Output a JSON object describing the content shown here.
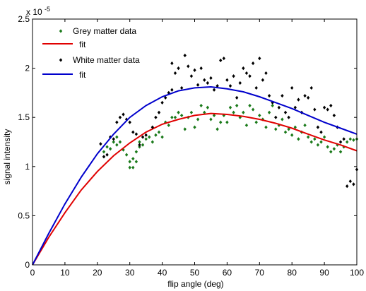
{
  "chart_data": {
    "type": "scatter",
    "xlabel": "flip angle (deg)",
    "ylabel": "signal intensity",
    "exponent_label": "x 10",
    "exponent_power": "-5",
    "xlim": [
      0,
      100
    ],
    "ylim": [
      0,
      2.5
    ],
    "x_ticks": [
      0,
      10,
      20,
      30,
      40,
      50,
      60,
      70,
      80,
      90,
      100
    ],
    "y_ticks": [
      0,
      0.5,
      1,
      1.5,
      2,
      2.5
    ],
    "x_tick_labels": [
      "0",
      "10",
      "20",
      "30",
      "40",
      "50",
      "60",
      "70",
      "80",
      "90",
      "100"
    ],
    "y_tick_labels": [
      "0",
      "0.5",
      "1",
      "1.5",
      "2",
      "2.5"
    ],
    "grid": false,
    "legend_position": "top-left",
    "series": [
      {
        "name": "Grey matter data",
        "kind": "points",
        "color": "#1a7a1a",
        "points": [
          [
            22,
            1.15
          ],
          [
            23,
            1.2
          ],
          [
            24,
            1.18
          ],
          [
            25,
            1.25
          ],
          [
            26,
            1.22
          ],
          [
            26,
            1.3
          ],
          [
            27,
            1.25
          ],
          [
            28,
            1.17
          ],
          [
            29,
            1.12
          ],
          [
            30,
            1.05
          ],
          [
            30,
            0.99
          ],
          [
            31,
            0.99
          ],
          [
            31,
            1.08
          ],
          [
            32,
            1.05
          ],
          [
            32,
            1.15
          ],
          [
            33,
            1.2
          ],
          [
            33,
            1.25
          ],
          [
            34,
            1.22
          ],
          [
            35,
            1.28
          ],
          [
            36,
            1.3
          ],
          [
            37,
            1.25
          ],
          [
            38,
            1.32
          ],
          [
            39,
            1.35
          ],
          [
            40,
            1.3
          ],
          [
            41,
            1.45
          ],
          [
            42,
            1.42
          ],
          [
            43,
            1.5
          ],
          [
            44,
            1.5
          ],
          [
            45,
            1.55
          ],
          [
            46,
            1.52
          ],
          [
            47,
            1.38
          ],
          [
            48,
            1.5
          ],
          [
            49,
            1.55
          ],
          [
            50,
            1.4
          ],
          [
            51,
            1.48
          ],
          [
            52,
            1.62
          ],
          [
            53,
            1.55
          ],
          [
            54,
            1.6
          ],
          [
            55,
            1.48
          ],
          [
            56,
            1.52
          ],
          [
            57,
            1.38
          ],
          [
            58,
            1.45
          ],
          [
            59,
            1.52
          ],
          [
            60,
            1.45
          ],
          [
            61,
            1.6
          ],
          [
            62,
            1.55
          ],
          [
            63,
            1.62
          ],
          [
            64,
            1.5
          ],
          [
            65,
            1.55
          ],
          [
            66,
            1.42
          ],
          [
            67,
            1.62
          ],
          [
            68,
            1.58
          ],
          [
            69,
            1.45
          ],
          [
            70,
            1.52
          ],
          [
            71,
            1.48
          ],
          [
            72,
            1.4
          ],
          [
            73,
            1.55
          ],
          [
            74,
            1.62
          ],
          [
            75,
            1.38
          ],
          [
            76,
            1.42
          ],
          [
            77,
            1.48
          ],
          [
            78,
            1.35
          ],
          [
            79,
            1.38
          ],
          [
            80,
            1.32
          ],
          [
            81,
            1.4
          ],
          [
            82,
            1.28
          ],
          [
            83,
            1.35
          ],
          [
            84,
            1.42
          ],
          [
            85,
            1.3
          ],
          [
            86,
            1.25
          ],
          [
            87,
            1.28
          ],
          [
            88,
            1.22
          ],
          [
            89,
            1.25
          ],
          [
            90,
            1.3
          ],
          [
            91,
            1.2
          ],
          [
            92,
            1.15
          ],
          [
            93,
            1.18
          ],
          [
            94,
            1.22
          ],
          [
            95,
            1.15
          ],
          [
            96,
            1.2
          ],
          [
            97,
            1.25
          ],
          [
            98,
            1.28
          ],
          [
            99,
            1.27
          ],
          [
            100,
            1.28
          ]
        ]
      },
      {
        "name": "fit",
        "kind": "line",
        "color": "#e00000",
        "points": [
          [
            0,
            0
          ],
          [
            5,
            0.28
          ],
          [
            10,
            0.53
          ],
          [
            15,
            0.76
          ],
          [
            20,
            0.95
          ],
          [
            25,
            1.11
          ],
          [
            30,
            1.24
          ],
          [
            35,
            1.35
          ],
          [
            40,
            1.43
          ],
          [
            45,
            1.48
          ],
          [
            50,
            1.52
          ],
          [
            55,
            1.54
          ],
          [
            60,
            1.53
          ],
          [
            65,
            1.51
          ],
          [
            70,
            1.48
          ],
          [
            75,
            1.44
          ],
          [
            80,
            1.39
          ],
          [
            85,
            1.33
          ],
          [
            90,
            1.27
          ],
          [
            95,
            1.22
          ],
          [
            100,
            1.16
          ]
        ]
      },
      {
        "name": "White matter data",
        "kind": "points",
        "color": "#000000",
        "points": [
          [
            21,
            1.23
          ],
          [
            22,
            1.1
          ],
          [
            23,
            1.12
          ],
          [
            24,
            1.3
          ],
          [
            25,
            1.28
          ],
          [
            26,
            1.45
          ],
          [
            27,
            1.5
          ],
          [
            28,
            1.53
          ],
          [
            29,
            1.48
          ],
          [
            30,
            1.45
          ],
          [
            31,
            1.35
          ],
          [
            32,
            1.33
          ],
          [
            33,
            1.22
          ],
          [
            34,
            1.3
          ],
          [
            35,
            1.32
          ],
          [
            37,
            1.4
          ],
          [
            38,
            1.5
          ],
          [
            39,
            1.55
          ],
          [
            40,
            1.65
          ],
          [
            41,
            1.7
          ],
          [
            42,
            1.75
          ],
          [
            43,
            1.78
          ],
          [
            43,
            2.05
          ],
          [
            44,
            1.95
          ],
          [
            45,
            2.0
          ],
          [
            46,
            1.8
          ],
          [
            47,
            2.13
          ],
          [
            48,
            2.02
          ],
          [
            49,
            1.92
          ],
          [
            50,
            1.98
          ],
          [
            51,
            1.83
          ],
          [
            52,
            2.0
          ],
          [
            53,
            1.88
          ],
          [
            54,
            1.85
          ],
          [
            55,
            1.9
          ],
          [
            56,
            1.78
          ],
          [
            57,
            1.82
          ],
          [
            58,
            2.08
          ],
          [
            59,
            2.1
          ],
          [
            60,
            1.88
          ],
          [
            61,
            1.82
          ],
          [
            62,
            1.92
          ],
          [
            63,
            1.7
          ],
          [
            64,
            1.85
          ],
          [
            65,
            2.0
          ],
          [
            66,
            1.95
          ],
          [
            67,
            1.92
          ],
          [
            68,
            2.05
          ],
          [
            69,
            1.8
          ],
          [
            70,
            2.1
          ],
          [
            71,
            1.88
          ],
          [
            72,
            1.95
          ],
          [
            73,
            1.72
          ],
          [
            74,
            1.65
          ],
          [
            75,
            1.5
          ],
          [
            76,
            1.6
          ],
          [
            77,
            1.72
          ],
          [
            78,
            1.55
          ],
          [
            79,
            1.5
          ],
          [
            80,
            1.8
          ],
          [
            81,
            1.6
          ],
          [
            82,
            1.68
          ],
          [
            83,
            1.55
          ],
          [
            84,
            1.72
          ],
          [
            85,
            1.7
          ],
          [
            86,
            1.8
          ],
          [
            87,
            1.58
          ],
          [
            88,
            1.4
          ],
          [
            89,
            1.35
          ],
          [
            90,
            1.6
          ],
          [
            91,
            1.58
          ],
          [
            92,
            1.62
          ],
          [
            93,
            1.52
          ],
          [
            94,
            1.4
          ],
          [
            95,
            1.25
          ],
          [
            96,
            1.28
          ],
          [
            97,
            0.8
          ],
          [
            98,
            0.85
          ],
          [
            99,
            0.82
          ],
          [
            100,
            0.97
          ]
        ]
      },
      {
        "name": "fit",
        "kind": "line",
        "color": "#0000cc",
        "points": [
          [
            0,
            0
          ],
          [
            5,
            0.32
          ],
          [
            10,
            0.62
          ],
          [
            15,
            0.89
          ],
          [
            20,
            1.13
          ],
          [
            25,
            1.33
          ],
          [
            30,
            1.5
          ],
          [
            35,
            1.62
          ],
          [
            40,
            1.71
          ],
          [
            45,
            1.77
          ],
          [
            50,
            1.8
          ],
          [
            55,
            1.81
          ],
          [
            60,
            1.79
          ],
          [
            65,
            1.76
          ],
          [
            70,
            1.71
          ],
          [
            75,
            1.65
          ],
          [
            80,
            1.59
          ],
          [
            85,
            1.52
          ],
          [
            90,
            1.45
          ],
          [
            95,
            1.39
          ],
          [
            100,
            1.33
          ]
        ]
      }
    ]
  }
}
